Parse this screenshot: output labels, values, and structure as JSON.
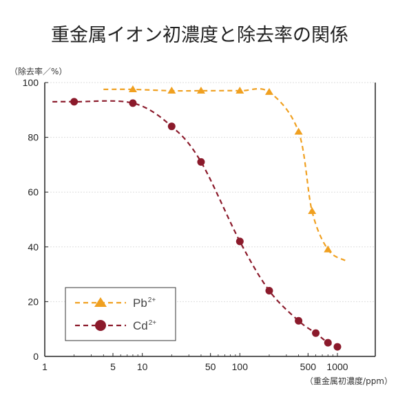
{
  "chart_data": {
    "type": "line",
    "title": "重金属イオン初濃度と除去率の関係",
    "xlabel": "（重金属初濃度/ppm）",
    "ylabel": "（除去率／%）",
    "x_scale": "log",
    "xlim": [
      1,
      1000
    ],
    "ylim": [
      0,
      100
    ],
    "x_ticks": [
      1,
      5,
      10,
      50,
      100,
      500,
      1000
    ],
    "x_tick_labels": [
      "1",
      "5",
      "10",
      "50",
      "100",
      "500",
      "1000"
    ],
    "y_ticks": [
      0,
      20,
      40,
      60,
      80,
      100
    ],
    "y_tick_labels": [
      "0",
      "20",
      "40",
      "60",
      "80",
      "100"
    ],
    "grid": true,
    "legend_position": "bottom-left",
    "series": [
      {
        "name": "Pb",
        "superscript": "2+",
        "marker": "triangle",
        "color": "#f0a020",
        "points": [
          [
            8,
            97.5
          ],
          [
            20,
            97
          ],
          [
            40,
            97
          ],
          [
            100,
            97
          ],
          [
            200,
            96.5
          ],
          [
            400,
            82
          ],
          [
            550,
            53
          ],
          [
            800,
            39
          ]
        ],
        "curve_start": [
          4,
          97.5
        ],
        "curve_end": [
          1200,
          35
        ]
      },
      {
        "name": "Cd",
        "superscript": "2+",
        "marker": "circle",
        "color": "#8b1a2b",
        "points": [
          [
            2,
            93
          ],
          [
            8,
            92.5
          ],
          [
            20,
            84
          ],
          [
            40,
            71
          ],
          [
            100,
            42
          ],
          [
            200,
            24
          ],
          [
            400,
            13
          ],
          [
            600,
            8.5
          ],
          [
            800,
            5
          ],
          [
            1000,
            3.5
          ]
        ],
        "curve_start": [
          1.2,
          93
        ],
        "curve_end": [
          1000,
          3.5
        ]
      }
    ]
  }
}
